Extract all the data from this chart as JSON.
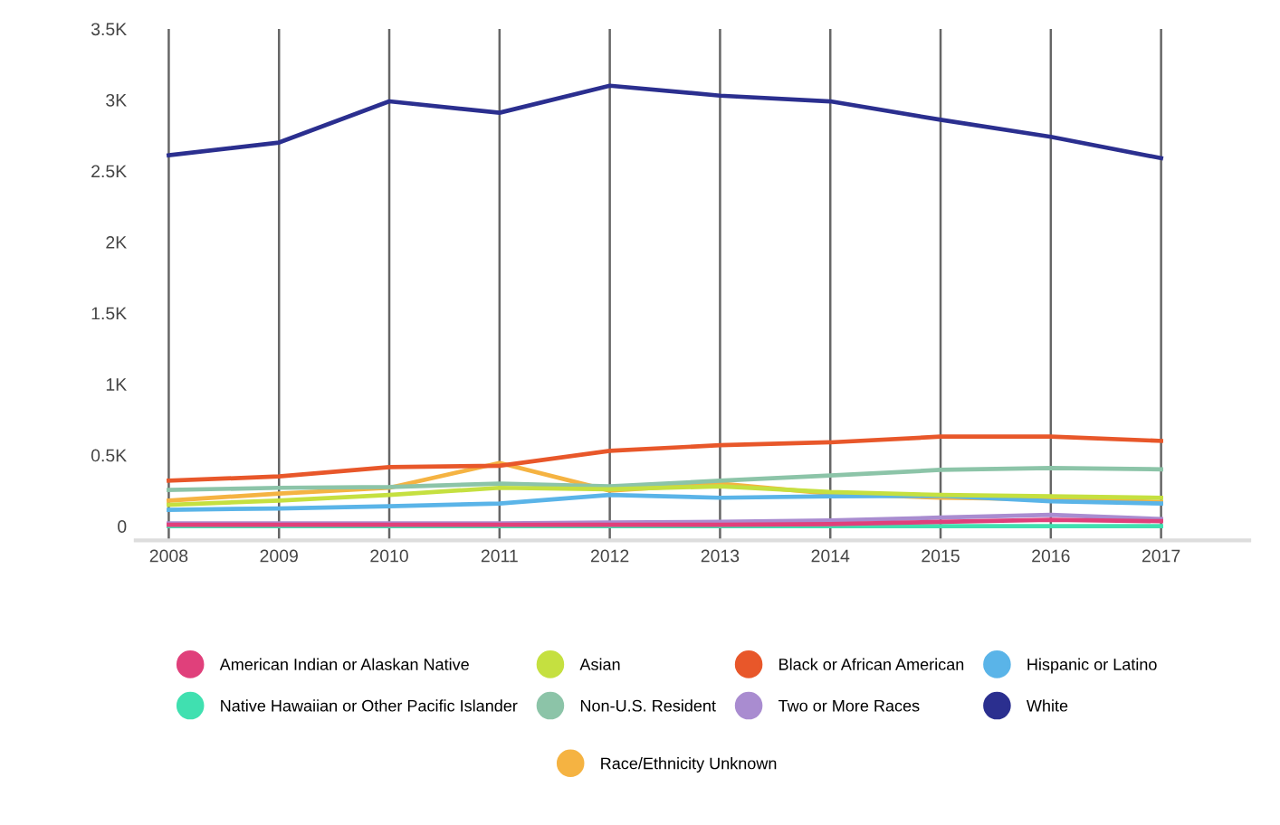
{
  "chart_data": {
    "type": "line",
    "categories": [
      "2008",
      "2009",
      "2010",
      "2011",
      "2012",
      "2013",
      "2014",
      "2015",
      "2016",
      "2017"
    ],
    "series": [
      {
        "name": "American Indian or Alaskan Native",
        "color": "#e0407b",
        "values": [
          10,
          10,
          10,
          10,
          10,
          10,
          15,
          30,
          45,
          35
        ]
      },
      {
        "name": "Asian",
        "color": "#c5e040",
        "values": [
          150,
          180,
          220,
          270,
          260,
          280,
          240,
          220,
          210,
          200
        ]
      },
      {
        "name": "Black or African American",
        "color": "#e8572a",
        "values": [
          320,
          350,
          415,
          425,
          530,
          570,
          590,
          630,
          630,
          600
        ]
      },
      {
        "name": "Hispanic or Latino",
        "color": "#5ab4e8",
        "values": [
          115,
          125,
          140,
          160,
          220,
          200,
          210,
          215,
          175,
          160
        ]
      },
      {
        "name": "Native Hawaiian or Other Pacific Islander",
        "color": "#40e0b0",
        "values": [
          0,
          0,
          0,
          0,
          0,
          0,
          0,
          0,
          0,
          0
        ]
      },
      {
        "name": "Non-U.S. Resident",
        "color": "#8cc4a8",
        "values": [
          255,
          270,
          275,
          300,
          280,
          320,
          357,
          396,
          409,
          400
        ]
      },
      {
        "name": "Two or More Races",
        "color": "#a98cd0",
        "values": [
          20,
          20,
          20,
          20,
          25,
          30,
          40,
          60,
          80,
          50
        ]
      },
      {
        "name": "White",
        "color": "#2b2f8f",
        "values": [
          2610,
          2700,
          2990,
          2910,
          3100,
          3030,
          2990,
          2860,
          2740,
          2590
        ]
      },
      {
        "name": "Race/Ethnicity Unknown",
        "color": "#f5b342",
        "values": [
          180,
          230,
          270,
          445,
          250,
          300,
          230,
          200,
          190,
          170
        ]
      }
    ],
    "ylim": [
      -100,
      3500
    ],
    "yticks": [
      {
        "value": 0,
        "label": "0"
      },
      {
        "value": 500,
        "label": "0.5K"
      },
      {
        "value": 1000,
        "label": "1K"
      },
      {
        "value": 1500,
        "label": "1.5K"
      },
      {
        "value": 2000,
        "label": "2K"
      },
      {
        "value": 2500,
        "label": "2.5K"
      },
      {
        "value": 3000,
        "label": "3K"
      },
      {
        "value": 3500,
        "label": "3.5K"
      }
    ],
    "grid": "x",
    "legend": "bottom",
    "marker": "none",
    "line_style": "solid"
  }
}
